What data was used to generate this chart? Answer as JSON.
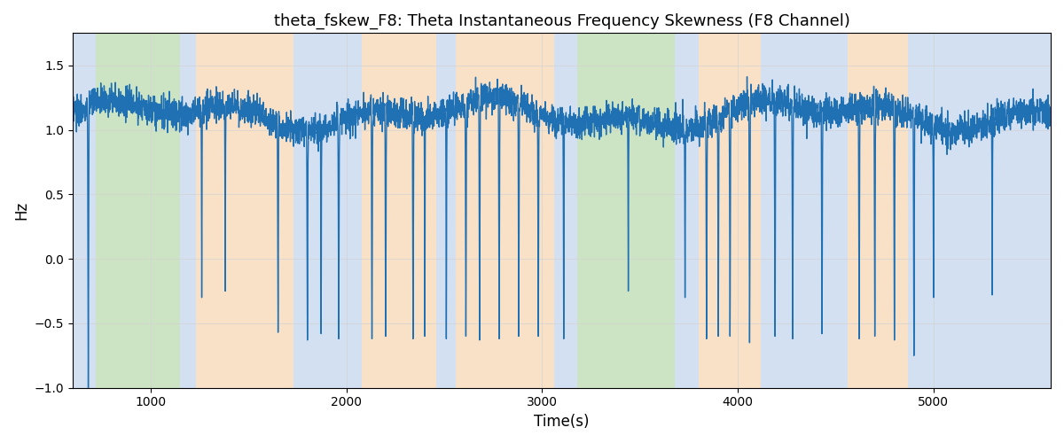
{
  "title": "theta_fskew_F8: Theta Instantaneous Frequency Skewness (F8 Channel)",
  "xlabel": "Time(s)",
  "ylabel": "Hz",
  "ylim": [
    -1.0,
    1.75
  ],
  "xlim": [
    600,
    5600
  ],
  "yticks": [
    -1.0,
    -0.5,
    0.0,
    0.5,
    1.0,
    1.5
  ],
  "xticks": [
    1000,
    2000,
    3000,
    4000,
    5000
  ],
  "line_color": "#2070b4",
  "line_width": 1.0,
  "bg_color": "#ffffff",
  "title_fontsize": 13,
  "label_fontsize": 12,
  "bands": [
    {
      "start": 600,
      "end": 720,
      "color": "#adc8e8",
      "alpha": 0.55
    },
    {
      "start": 720,
      "end": 1150,
      "color": "#8ec47a",
      "alpha": 0.45
    },
    {
      "start": 1150,
      "end": 1230,
      "color": "#adc8e8",
      "alpha": 0.55
    },
    {
      "start": 1230,
      "end": 1730,
      "color": "#f5c99a",
      "alpha": 0.55
    },
    {
      "start": 1730,
      "end": 2080,
      "color": "#adc8e8",
      "alpha": 0.55
    },
    {
      "start": 2080,
      "end": 2460,
      "color": "#f5c99a",
      "alpha": 0.55
    },
    {
      "start": 2460,
      "end": 2560,
      "color": "#adc8e8",
      "alpha": 0.55
    },
    {
      "start": 2560,
      "end": 3060,
      "color": "#f5c99a",
      "alpha": 0.55
    },
    {
      "start": 3060,
      "end": 3180,
      "color": "#adc8e8",
      "alpha": 0.55
    },
    {
      "start": 3180,
      "end": 3680,
      "color": "#8ec47a",
      "alpha": 0.45
    },
    {
      "start": 3680,
      "end": 3800,
      "color": "#adc8e8",
      "alpha": 0.55
    },
    {
      "start": 3800,
      "end": 4120,
      "color": "#f5c99a",
      "alpha": 0.55
    },
    {
      "start": 4120,
      "end": 4560,
      "color": "#adc8e8",
      "alpha": 0.55
    },
    {
      "start": 4560,
      "end": 4870,
      "color": "#f5c99a",
      "alpha": 0.55
    },
    {
      "start": 4870,
      "end": 5600,
      "color": "#adc8e8",
      "alpha": 0.55
    }
  ]
}
